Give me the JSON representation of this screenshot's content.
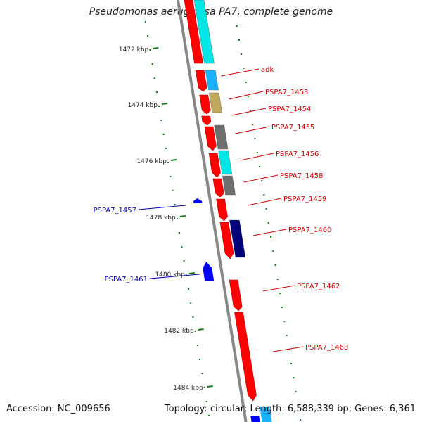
{
  "title": "Pseudomonas aeruginosa PA7, complete genome",
  "footer": {
    "accession_label": "Accession: NC_009656",
    "topology_label": "Topology: circular; Length: 6,588,339 bp; Genes: 6,361"
  },
  "colors": {
    "cds_forward": "#ff0000",
    "cds_reverse": "#0000ff",
    "forward_gene_label": "#cc0000",
    "reverse_gene_label": "#0000aa",
    "tick_mark": "#1a7a1a",
    "backbone": "#888888",
    "cog_cyan": "#00e5e5",
    "cog_light_blue": "#1ab2ff",
    "cog_khaki": "#c2a85c",
    "cog_gray": "#6e6e6e",
    "cog_navy": "#00007a"
  },
  "kbp_markers": [
    {
      "label": "1472 kbp"
    },
    {
      "label": "1474 kbp"
    },
    {
      "label": "1476 kbp"
    },
    {
      "label": "1478 kbp"
    },
    {
      "label": "1480 kbp"
    },
    {
      "label": "1482 kbp"
    },
    {
      "label": "1484 kbp"
    }
  ],
  "gene_labels": [
    {
      "text": "adk",
      "strand": "forward"
    },
    {
      "text": "PSPA7_1453",
      "strand": "forward"
    },
    {
      "text": "PSPA7_1454",
      "strand": "forward"
    },
    {
      "text": "PSPA7_1455",
      "strand": "forward"
    },
    {
      "text": "PSPA7_1456",
      "strand": "forward"
    },
    {
      "text": "PSPA7_1458",
      "strand": "forward"
    },
    {
      "text": "PSPA7_1459",
      "strand": "forward"
    },
    {
      "text": "PSPA7_1460",
      "strand": "forward"
    },
    {
      "text": "PSPA7_1462",
      "strand": "forward"
    },
    {
      "text": "PSPA7_1463",
      "strand": "forward"
    },
    {
      "text": "PSPA7_1457",
      "strand": "reverse"
    },
    {
      "text": "PSPA7_1461",
      "strand": "reverse"
    }
  ]
}
